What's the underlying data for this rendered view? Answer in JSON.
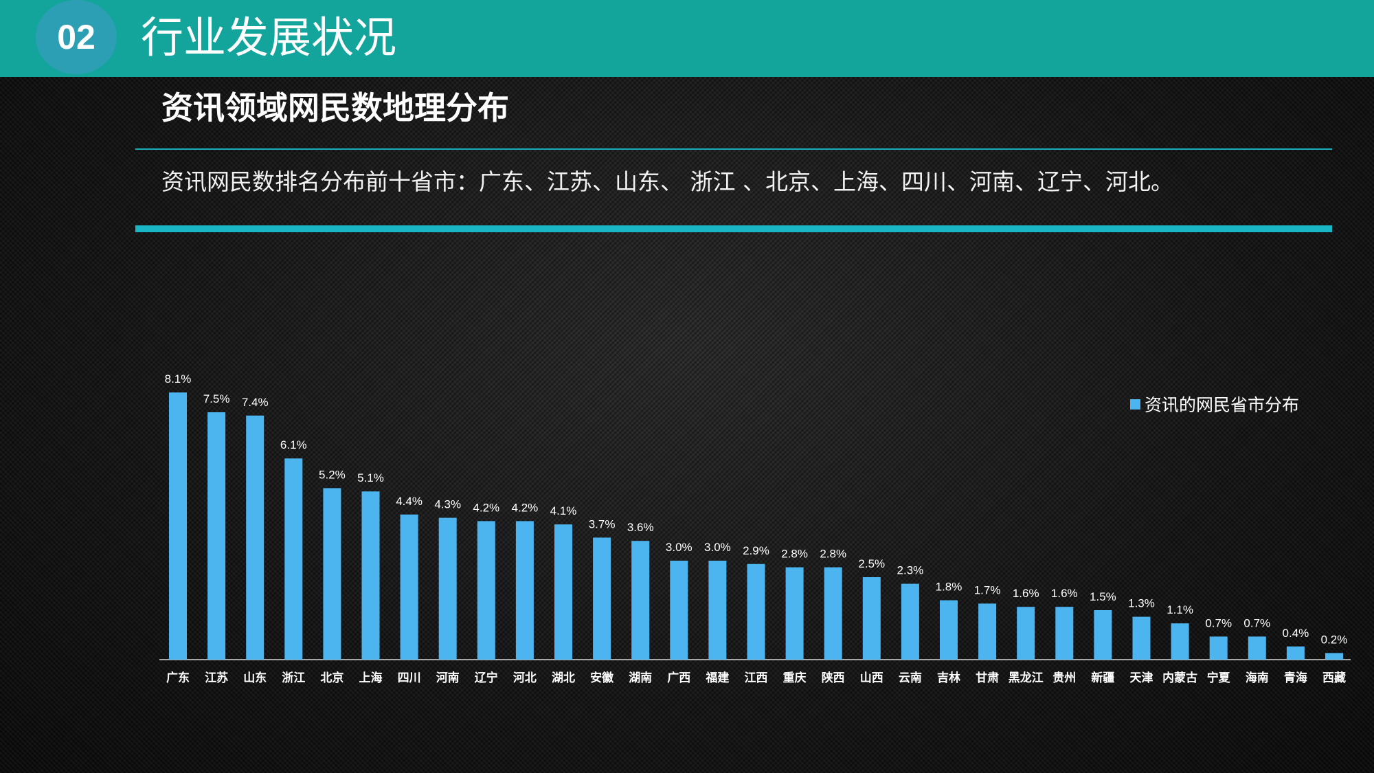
{
  "header": {
    "number": "02",
    "title": "行业发展状况"
  },
  "slide": {
    "title": "资讯领域网民数地理分布",
    "summary": "资讯网民数排名分布前十省市：广东、江苏、山东、 浙江 、北京、上海、四川、河南、辽宁、河北。"
  },
  "colors": {
    "teal": "#13a59c",
    "bar": "#4cb5f0",
    "circle": "#2d9fb4",
    "rule": "#19b6c6"
  },
  "chart_data": {
    "type": "bar",
    "title": "",
    "xlabel": "",
    "ylabel": "",
    "ylim": [
      0,
      9
    ],
    "grid": false,
    "legend": "right",
    "categories": [
      "广东",
      "江苏",
      "山东",
      "浙江",
      "北京",
      "上海",
      "四川",
      "河南",
      "辽宁",
      "河北",
      "湖北",
      "安徽",
      "湖南",
      "广西",
      "福建",
      "江西",
      "重庆",
      "陕西",
      "山西",
      "云南",
      "吉林",
      "甘肃",
      "黑龙江",
      "贵州",
      "新疆",
      "天津",
      "内蒙古",
      "宁夏",
      "海南",
      "青海",
      "西藏"
    ],
    "series": [
      {
        "name": "资讯的网民省市分布",
        "values": [
          8.1,
          7.5,
          7.4,
          6.1,
          5.2,
          5.1,
          4.4,
          4.3,
          4.2,
          4.2,
          4.1,
          3.7,
          3.6,
          3.0,
          3.0,
          2.9,
          2.8,
          2.8,
          2.5,
          2.3,
          1.8,
          1.7,
          1.6,
          1.6,
          1.5,
          1.3,
          1.1,
          0.7,
          0.7,
          0.4,
          0.2
        ],
        "labels": [
          "8.1%",
          "7.5%",
          "7.4%",
          "6.1%",
          "5.2%",
          "5.1%",
          "4.4%",
          "4.3%",
          "4.2%",
          "4.2%",
          "4.1%",
          "3.7%",
          "3.6%",
          "3.0%",
          "3.0%",
          "2.9%",
          "2.8%",
          "2.8%",
          "2.5%",
          "2.3%",
          "1.8%",
          "1.7%",
          "1.6%",
          "1.6%",
          "1.5%",
          "1.3%",
          "1.1%",
          "0.7%",
          "0.7%",
          "0.4%",
          "0.2%"
        ]
      }
    ]
  }
}
